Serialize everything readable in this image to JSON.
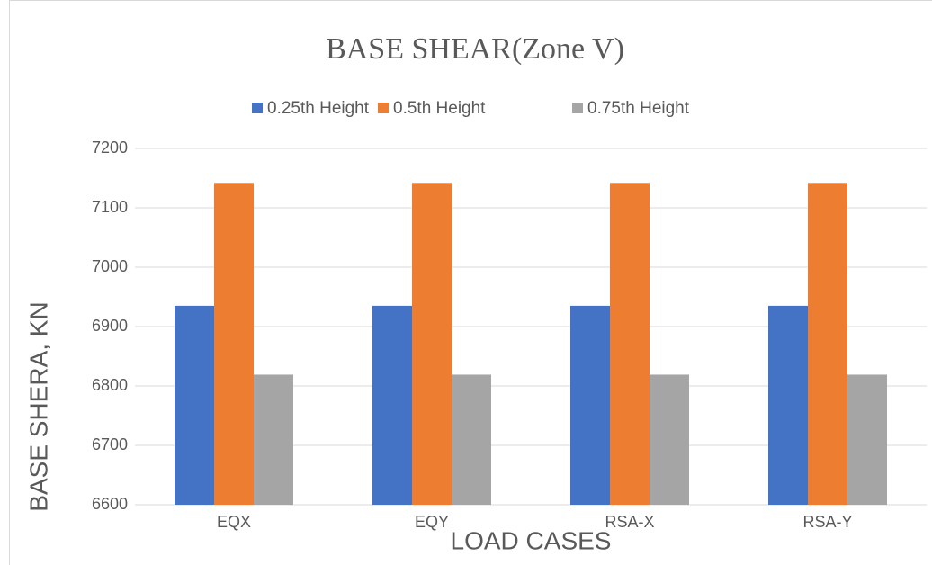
{
  "chart_data": {
    "type": "bar",
    "title": "BASE SHEAR(Zone V)",
    "x_label": "LOAD CASES",
    "y_label": "BASE SHERA, KN",
    "categories": [
      "EQX",
      "EQY",
      "RSA-X",
      "RSA-Y"
    ],
    "series": [
      {
        "name": "0.25th Height",
        "color": "#4472c4",
        "values": [
          6935,
          6935,
          6935,
          6935
        ]
      },
      {
        "name": "0.5th Height",
        "color": "#ed7d31",
        "values": [
          7142,
          7142,
          7142,
          7142
        ]
      },
      {
        "name": "0.75th Height",
        "color": "#a5a5a5",
        "values": [
          6819,
          6819,
          6819,
          6819
        ]
      }
    ],
    "ylim": [
      6600,
      7200
    ],
    "yticks": [
      6600,
      6700,
      6800,
      6900,
      7000,
      7100,
      7200
    ],
    "grid": true,
    "legend": "top"
  }
}
